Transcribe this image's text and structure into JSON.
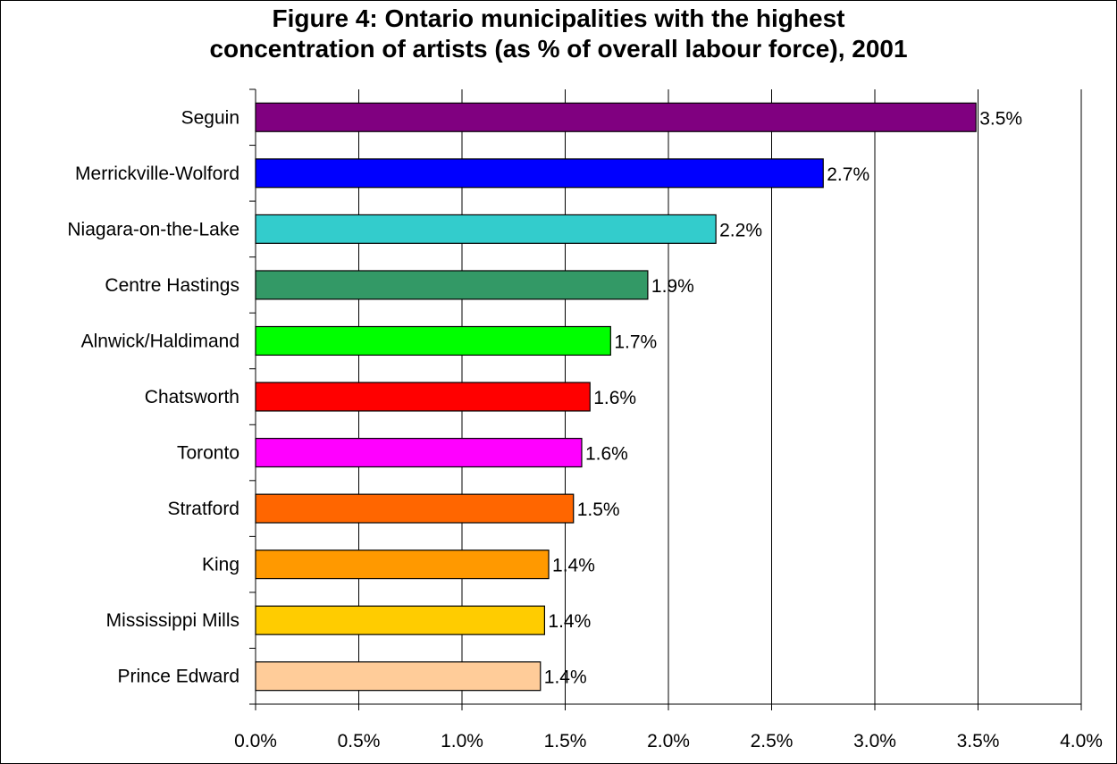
{
  "chart_data": {
    "type": "bar",
    "orientation": "horizontal",
    "title_lines": [
      "Figure 4: Ontario municipalities with the highest",
      "concentration of artists (as % of overall labour force), 2001"
    ],
    "categories": [
      "Seguin",
      "Merrickville-Wolford",
      "Niagara-on-the-Lake",
      "Centre Hastings",
      "Alnwick/Haldimand",
      "Chatsworth",
      "Toronto",
      "Stratford",
      "King",
      "Mississippi Mills",
      "Prince Edward"
    ],
    "values": [
      3.49,
      2.75,
      2.23,
      1.9,
      1.72,
      1.62,
      1.58,
      1.54,
      1.42,
      1.4,
      1.38
    ],
    "data_labels": [
      "3.5%",
      "2.7%",
      "2.2%",
      "1.9%",
      "1.7%",
      "1.6%",
      "1.6%",
      "1.5%",
      "1.4%",
      "1.4%",
      "1.4%"
    ],
    "colors": [
      "#800080",
      "#0000ff",
      "#33cccc",
      "#339966",
      "#00ff00",
      "#ff0000",
      "#ff00ff",
      "#ff6600",
      "#ff9900",
      "#ffcc00",
      "#ffcc99"
    ],
    "xlim": [
      0,
      4.0
    ],
    "x_ticks": [
      0,
      0.5,
      1.0,
      1.5,
      2.0,
      2.5,
      3.0,
      3.5,
      4.0
    ],
    "x_tick_labels": [
      "0.0%",
      "0.5%",
      "1.0%",
      "1.5%",
      "2.0%",
      "2.5%",
      "3.0%",
      "3.5%",
      "4.0%"
    ],
    "grid": "vertical",
    "legend": "none"
  }
}
